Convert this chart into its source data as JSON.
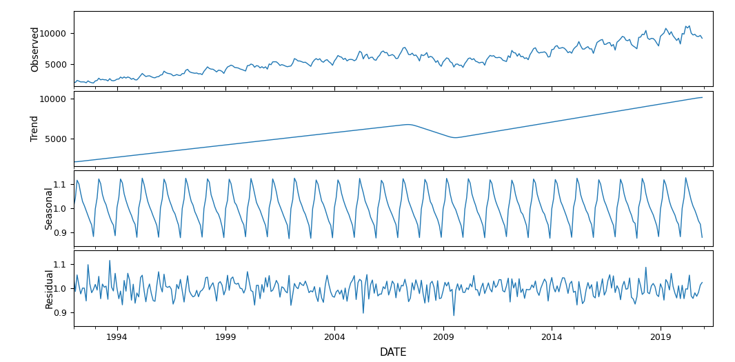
{
  "xlabel": "DATE",
  "line_color": "#1f77b4",
  "x_tick_years": [
    1994,
    1999,
    2004,
    2009,
    2014,
    2019
  ],
  "observed_yticks": [
    5000,
    10000
  ],
  "trend_yticks": [
    5000,
    10000
  ],
  "seasonal_yticks": [
    0.9,
    1.0,
    1.1
  ],
  "residual_yticks": [
    0.9,
    1.0,
    1.1
  ],
  "subplot_labels": [
    "Observed",
    "Trend",
    "Seasonal",
    "Residual"
  ],
  "line_width": 1.0,
  "line_color_hex": "#1f77b4"
}
